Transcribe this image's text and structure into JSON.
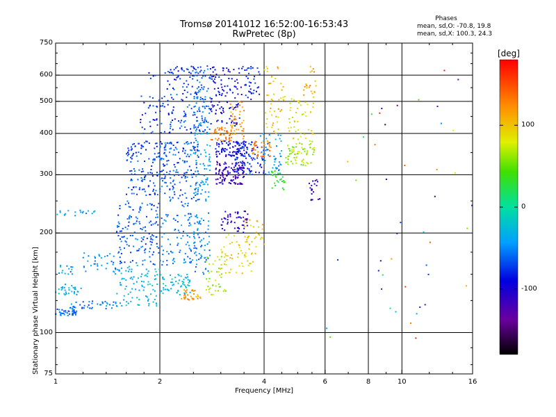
{
  "header": {
    "title": "Tromsø 20141012 16:52:00-16:53:43",
    "subtitle": "RwPretec (8p)",
    "phases_title": "Phases",
    "phases_o": "mean, sd,O: -70.8, 19.8",
    "phases_x": "mean, sd,X: 100.3, 24.3"
  },
  "colorbar": {
    "unit": "[deg]",
    "tick_labels": [
      "100",
      "0",
      "-100"
    ],
    "ticks": [
      100,
      0,
      -100
    ],
    "range": [
      -180,
      180
    ]
  },
  "chart_data": {
    "type": "scatter",
    "title": "Tromsø 20141012 16:52:00-16:53:43",
    "subtitle": "RwPretec (8p)",
    "xlabel": "Frequency [MHz]",
    "ylabel": "Stationary phase Virtual Height [km]",
    "xscale": "log",
    "yscale": "log",
    "xlim": [
      1,
      16
    ],
    "ylim": [
      75,
      750
    ],
    "x_tick_labels": [
      "1",
      "2",
      "4",
      "6",
      "8",
      "10",
      "16"
    ],
    "x_ticks": [
      1,
      2,
      4,
      6,
      8,
      10,
      16
    ],
    "y_tick_labels": [
      "75",
      "100",
      "200",
      "300",
      "400",
      "500",
      "600",
      "750"
    ],
    "y_ticks": [
      75,
      100,
      200,
      300,
      400,
      500,
      600,
      750
    ],
    "grid": true,
    "color_variable": "phase [deg]",
    "clusters": [
      {
        "x": [
          1.0,
          1.15
        ],
        "y": [
          112,
          118
        ],
        "phase": -60,
        "n": 40
      },
      {
        "x": [
          1.0,
          1.2
        ],
        "y": [
          130,
          140
        ],
        "phase": -35,
        "n": 30
      },
      {
        "x": [
          1.0,
          1.12
        ],
        "y": [
          150,
          160
        ],
        "phase": -45,
        "n": 14
      },
      {
        "x": [
          1.0,
          1.3
        ],
        "y": [
          225,
          235
        ],
        "phase": -40,
        "n": 18
      },
      {
        "x": [
          1.1,
          1.5
        ],
        "y": [
          118,
          125
        ],
        "phase": -55,
        "n": 40
      },
      {
        "x": [
          1.2,
          1.55
        ],
        "y": [
          150,
          175
        ],
        "phase": -45,
        "n": 40
      },
      {
        "x": [
          1.5,
          2.0
        ],
        "y": [
          120,
          160
        ],
        "phase": -30,
        "n": 90
      },
      {
        "x": [
          1.5,
          2.0
        ],
        "y": [
          160,
          250
        ],
        "phase": -65,
        "n": 140
      },
      {
        "x": [
          1.6,
          2.1
        ],
        "y": [
          260,
          380
        ],
        "phase": -70,
        "n": 140
      },
      {
        "x": [
          1.75,
          2.2
        ],
        "y": [
          400,
          520
        ],
        "phase": -75,
        "n": 50
      },
      {
        "x": [
          1.85,
          2.6
        ],
        "y": [
          580,
          640
        ],
        "phase": -85,
        "n": 25
      },
      {
        "x": [
          2.0,
          2.5
        ],
        "y": [
          130,
          150
        ],
        "phase": -25,
        "n": 60
      },
      {
        "x": [
          2.0,
          2.6
        ],
        "y": [
          160,
          230
        ],
        "phase": -55,
        "n": 90
      },
      {
        "x": [
          2.0,
          2.6
        ],
        "y": [
          240,
          380
        ],
        "phase": -65,
        "n": 160
      },
      {
        "x": [
          2.1,
          2.7
        ],
        "y": [
          400,
          640
        ],
        "phase": -70,
        "n": 90
      },
      {
        "x": [
          2.3,
          2.65
        ],
        "y": [
          125,
          135
        ],
        "phase": 115,
        "n": 35
      },
      {
        "x": [
          2.5,
          2.8
        ],
        "y": [
          150,
          230
        ],
        "phase": -50,
        "n": 60
      },
      {
        "x": [
          2.5,
          2.8
        ],
        "y": [
          250,
          400
        ],
        "phase": -40,
        "n": 60
      },
      {
        "x": [
          2.5,
          2.8
        ],
        "y": [
          400,
          640
        ],
        "phase": -60,
        "n": 80
      },
      {
        "x": [
          2.7,
          3.1
        ],
        "y": [
          130,
          170
        ],
        "phase": 70,
        "n": 40
      },
      {
        "x": [
          2.9,
          3.5
        ],
        "y": [
          280,
          330
        ],
        "phase": -115,
        "n": 120
      },
      {
        "x": [
          2.9,
          3.6
        ],
        "y": [
          340,
          380
        ],
        "phase": -90,
        "n": 80
      },
      {
        "x": [
          2.8,
          3.2
        ],
        "y": [
          380,
          420
        ],
        "phase": 130,
        "n": 40
      },
      {
        "x": [
          2.8,
          3.4
        ],
        "y": [
          420,
          640
        ],
        "phase": -95,
        "n": 110
      },
      {
        "x": [
          3.0,
          3.8
        ],
        "y": [
          150,
          200
        ],
        "phase": 90,
        "n": 60
      },
      {
        "x": [
          3.0,
          3.6
        ],
        "y": [
          200,
          235
        ],
        "phase": -110,
        "n": 50
      },
      {
        "x": [
          3.2,
          3.5
        ],
        "y": [
          380,
          500
        ],
        "phase": 120,
        "n": 45
      },
      {
        "x": [
          3.3,
          4.0
        ],
        "y": [
          300,
          380
        ],
        "phase": -80,
        "n": 90
      },
      {
        "x": [
          3.4,
          3.9
        ],
        "y": [
          500,
          640
        ],
        "phase": -85,
        "n": 40
      },
      {
        "x": [
          3.5,
          4.0
        ],
        "y": [
          180,
          220
        ],
        "phase": 100,
        "n": 25
      },
      {
        "x": [
          3.7,
          4.2
        ],
        "y": [
          340,
          380
        ],
        "phase": 130,
        "n": 40
      },
      {
        "x": [
          3.9,
          4.5
        ],
        "y": [
          300,
          400
        ],
        "phase": -40,
        "n": 50
      },
      {
        "x": [
          4.0,
          4.6
        ],
        "y": [
          400,
          650
        ],
        "phase": 100,
        "n": 50
      },
      {
        "x": [
          4.2,
          4.6
        ],
        "y": [
          270,
          310
        ],
        "phase": 30,
        "n": 25
      },
      {
        "x": [
          4.6,
          5.6
        ],
        "y": [
          320,
          380
        ],
        "phase": 65,
        "n": 70
      },
      {
        "x": [
          4.7,
          5.6
        ],
        "y": [
          380,
          520
        ],
        "phase": 85,
        "n": 45
      },
      {
        "x": [
          5.4,
          5.8
        ],
        "y": [
          250,
          290
        ],
        "phase": -115,
        "n": 20
      },
      {
        "x": [
          5.2,
          5.8
        ],
        "y": [
          520,
          640
        ],
        "phase": 115,
        "n": 20
      },
      {
        "x": [
          6.0,
          16.0
        ],
        "y": [
          90,
          660
        ],
        "phase": 0,
        "n": 45
      }
    ]
  }
}
